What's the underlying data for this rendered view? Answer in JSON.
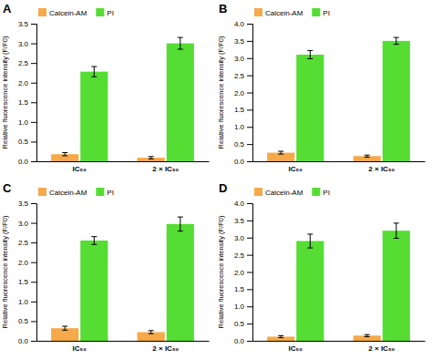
{
  "chart_data": [
    {
      "type": "bar",
      "title": "A",
      "ylabel": "Relative fluorescence intensity (F/F0)",
      "categories": [
        "IC₅₀",
        "2 × IC₅₀"
      ],
      "series": [
        {
          "name": "Calcein-AM",
          "color": "#F5A94A",
          "values": [
            0.18,
            0.09
          ],
          "errors": [
            0.04,
            0.03
          ]
        },
        {
          "name": "PI",
          "color": "#55DD33",
          "values": [
            2.28,
            3.0
          ],
          "errors": [
            0.13,
            0.15
          ]
        }
      ],
      "ylim": [
        0,
        3.5
      ],
      "yticks": [
        {
          "value": 0,
          "label": "0.0"
        },
        0.5,
        {
          "value": 1,
          "label": "1.0"
        },
        1.5,
        {
          "value": 2,
          "label": "2.0"
        },
        2.5,
        {
          "value": 3,
          "label": "3.0"
        },
        3.5
      ],
      "grid": false,
      "legend": "upper left"
    },
    {
      "type": "bar",
      "title": "B",
      "ylabel": "Relative fluorescence intensity (F/F0)",
      "categories": [
        "IC₅₀",
        "2 × IC₅₀"
      ],
      "series": [
        {
          "name": "Calcein-AM",
          "color": "#F5A94A",
          "values": [
            0.25,
            0.15
          ],
          "errors": [
            0.04,
            0.03
          ]
        },
        {
          "name": "PI",
          "color": "#55DD33",
          "values": [
            3.1,
            3.5
          ],
          "errors": [
            0.12,
            0.1
          ]
        }
      ],
      "ylim": [
        0,
        4.0
      ],
      "yticks": [
        {
          "value": 0,
          "label": "0.0"
        },
        0.5,
        {
          "value": 1,
          "label": "1.0"
        },
        1.5,
        {
          "value": 2,
          "label": "2.0"
        },
        2.5,
        {
          "value": 3,
          "label": "3.0"
        },
        3.5,
        {
          "value": 4,
          "label": "4.0"
        }
      ],
      "grid": false,
      "legend": "upper left"
    },
    {
      "type": "bar",
      "title": "C",
      "ylabel": "Relative fluorescence intensity (F/F0)",
      "categories": [
        "IC₅₀",
        "2 × IC₅₀"
      ],
      "series": [
        {
          "name": "Calcein-AM",
          "color": "#F5A94A",
          "values": [
            0.32,
            0.22
          ],
          "errors": [
            0.05,
            0.04
          ]
        },
        {
          "name": "PI",
          "color": "#55DD33",
          "values": [
            2.55,
            2.97
          ],
          "errors": [
            0.1,
            0.18
          ]
        }
      ],
      "ylim": [
        0,
        3.5
      ],
      "yticks": [
        {
          "value": 0,
          "label": "0.0"
        },
        0.5,
        {
          "value": 1,
          "label": "1.0"
        },
        1.5,
        {
          "value": 2,
          "label": "2.0"
        },
        2.5,
        {
          "value": 3,
          "label": "3.0"
        },
        3.5
      ],
      "grid": false,
      "legend": "upper left"
    },
    {
      "type": "bar",
      "title": "D",
      "ylabel": "Relative fluorescence intensity (F/F0)",
      "categories": [
        "IC₅₀",
        "2 × IC₅₀"
      ],
      "series": [
        {
          "name": "Calcein-AM",
          "color": "#F5A94A",
          "values": [
            0.12,
            0.15
          ],
          "errors": [
            0.03,
            0.03
          ]
        },
        {
          "name": "PI",
          "color": "#55DD33",
          "values": [
            2.9,
            3.2
          ],
          "errors": [
            0.2,
            0.22
          ]
        }
      ],
      "ylim": [
        0,
        4.0
      ],
      "yticks": [
        {
          "value": 0,
          "label": "0.0"
        },
        0.5,
        {
          "value": 1,
          "label": "1.0"
        },
        1.5,
        {
          "value": 2,
          "label": "2.0"
        },
        2.5,
        {
          "value": 3,
          "label": "3.0"
        },
        3.5,
        {
          "value": 4,
          "label": "4.0"
        }
      ],
      "grid": false,
      "legend": "upper left"
    }
  ]
}
